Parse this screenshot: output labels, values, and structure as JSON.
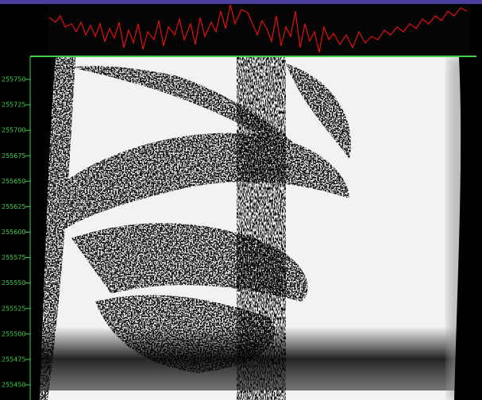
{
  "depth_axis": {
    "labels": [
      "255750",
      "255725",
      "255700",
      "255675",
      "255650",
      "255625",
      "255600",
      "255575",
      "255550",
      "255525",
      "255500",
      "255475",
      "255450"
    ]
  }
}
